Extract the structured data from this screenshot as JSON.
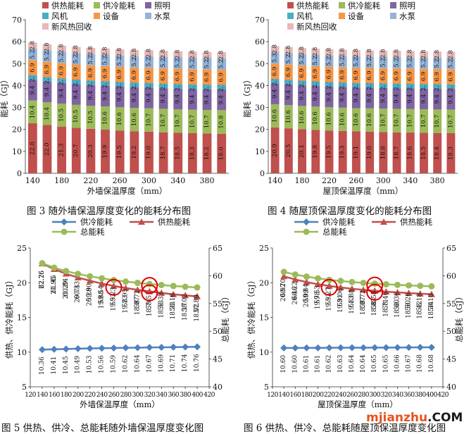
{
  "captions": {
    "fig3": "图 3  随外墙保温厚度变化的能耗分布图",
    "fig4": "图 4  随屋顶保温厚度变化的能耗分布图",
    "fig5": "图 5 供热、供冷、总能耗随外墙保温厚度变化图",
    "fig6": "图 6 供热、供冷、总能耗随屋顶保温厚度变化图"
  },
  "watermark": {
    "text_a": "mjianzhu",
    "text_b": ".COM",
    "color_a": "#e8521b",
    "color_b": "#1a1a1a"
  },
  "colors": {
    "heating": "#c0504d",
    "cooling": "#9bbb59",
    "lighting": "#8064a2",
    "fan": "#4bacc6",
    "equipment": "#f79646",
    "pump": "#95b3d7",
    "fresh": "#e6b9b8",
    "line_cooling": "#4f81bd",
    "line_heating": "#c0504d",
    "line_total": "#9bbb59",
    "highlight": "#e00000"
  },
  "chart_data": [
    {
      "type": "bar",
      "stacked": true,
      "xlabel": "外墙保温厚度（mm）",
      "ylabel": "能耗（GJ）",
      "ylim": [
        0,
        70
      ],
      "yticks": [
        0,
        10,
        20,
        30,
        40,
        50,
        60,
        70
      ],
      "x": [
        140,
        160,
        180,
        200,
        220,
        240,
        260,
        280,
        300,
        320,
        340,
        360,
        380,
        400
      ],
      "xticks": [
        "140",
        "180",
        "220",
        "260",
        "300",
        "340",
        "380"
      ],
      "legend": [
        "供热能耗",
        "供冷能耗",
        "照明",
        "风机",
        "设备",
        "水泵",
        "新风热回收"
      ],
      "legend_placement": "top",
      "series": [
        {
          "name": "供热能耗",
          "values": [
            22.8,
            22.0,
            21.3,
            20.7,
            20.3,
            19.9,
            19.5,
            19.2,
            19.0,
            18.7,
            18.5,
            18.3,
            18.2,
            18.0
          ]
        },
        {
          "name": "供冷能耗",
          "values": [
            10.4,
            10.4,
            10.5,
            10.5,
            10.5,
            10.6,
            10.6,
            10.6,
            10.7,
            10.7,
            10.7,
            10.7,
            10.7,
            10.8
          ]
        },
        {
          "name": "照明",
          "values": [
            9.4,
            9.4,
            9.4,
            9.4,
            9.4,
            9.4,
            9.4,
            9.4,
            9.4,
            9.4,
            9.4,
            9.4,
            9.4,
            9.4
          ]
        },
        {
          "name": "风机",
          "values": [
            2.1,
            2.1,
            2.1,
            2.1,
            2.1,
            2.1,
            2.1,
            2.1,
            2.1,
            2.1,
            2.1,
            2.1,
            2.1,
            2.1
          ]
        },
        {
          "name": "设备",
          "values": [
            6.9,
            6.9,
            6.9,
            6.9,
            6.9,
            6.9,
            6.9,
            6.9,
            6.9,
            6.9,
            6.9,
            6.9,
            6.9,
            6.9
          ]
        },
        {
          "name": "水泵",
          "values": [
            5.2,
            5.2,
            5.2,
            5.2,
            5.2,
            5.2,
            5.2,
            5.2,
            5.2,
            5.2,
            5.2,
            5.2,
            5.2,
            5.2
          ]
        },
        {
          "name": "新风热回收",
          "values": [
            2.8,
            2.8,
            2.8,
            2.8,
            2.8,
            2.8,
            2.8,
            2.8,
            2.8,
            2.8,
            2.8,
            2.8,
            2.8,
            2.8
          ]
        }
      ]
    },
    {
      "type": "bar",
      "stacked": true,
      "xlabel": "屋顶保温厚度（mm）",
      "ylabel": "能耗（GJ）",
      "ylim": [
        0,
        70
      ],
      "yticks": [
        0,
        10,
        20,
        30,
        40,
        50,
        60,
        70
      ],
      "x": [
        140,
        160,
        180,
        200,
        220,
        240,
        260,
        280,
        300,
        320,
        340,
        360,
        380,
        400
      ],
      "xticks": [
        "140",
        "180",
        "220",
        "260",
        "300",
        "340",
        "380"
      ],
      "legend": [
        "供热能耗",
        "供冷能耗",
        "照明",
        "风机",
        "设备",
        "水泵",
        "新风热回收"
      ],
      "legend_placement": "top",
      "series": [
        {
          "name": "供热能耗",
          "values": [
            20.9,
            20.5,
            20.1,
            19.8,
            19.5,
            19.3,
            19.1,
            19.0,
            18.8,
            18.7,
            18.6,
            18.5,
            18.4,
            18.3
          ]
        },
        {
          "name": "供冷能耗",
          "values": [
            10.6,
            10.6,
            10.6,
            10.6,
            10.6,
            10.6,
            10.6,
            10.6,
            10.7,
            10.7,
            10.7,
            10.7,
            10.7,
            10.7
          ]
        },
        {
          "name": "照明",
          "values": [
            9.4,
            9.4,
            9.4,
            9.4,
            9.4,
            9.4,
            9.4,
            9.4,
            9.4,
            9.4,
            9.4,
            9.4,
            9.4,
            9.4
          ]
        },
        {
          "name": "风机",
          "values": [
            2.1,
            2.1,
            2.1,
            2.1,
            2.1,
            2.1,
            2.1,
            2.1,
            2.1,
            2.1,
            2.1,
            2.1,
            2.1,
            2.1
          ]
        },
        {
          "name": "设备",
          "values": [
            6.9,
            6.9,
            6.9,
            6.9,
            6.9,
            6.9,
            6.9,
            6.9,
            6.9,
            6.9,
            6.9,
            6.9,
            6.9,
            6.9
          ]
        },
        {
          "name": "水泵",
          "values": [
            5.3,
            5.2,
            5.2,
            5.2,
            5.2,
            5.2,
            5.2,
            5.2,
            5.2,
            5.2,
            5.2,
            5.2,
            5.2,
            5.2
          ]
        },
        {
          "name": "新风热回收",
          "values": [
            2.8,
            2.8,
            2.8,
            2.8,
            2.8,
            2.8,
            2.8,
            2.8,
            2.8,
            2.8,
            2.8,
            2.8,
            2.8,
            2.8
          ]
        }
      ]
    },
    {
      "type": "line",
      "xlabel": "外墙保温厚度（mm）",
      "ylabel_left": "供热、供冷能耗（GJ）",
      "ylabel_right": "总能耗（GJ）",
      "ylim_left": [
        5,
        25
      ],
      "yticks_left": [
        5,
        10,
        15,
        20,
        25
      ],
      "ylim_right": [
        40,
        65
      ],
      "yticks_right": [
        40,
        45,
        50,
        55,
        60,
        65
      ],
      "xlim": [
        120,
        420
      ],
      "xticks": [
        "120",
        "140",
        "160",
        "180",
        "200",
        "220",
        "240",
        "260",
        "280",
        "300",
        "320",
        "340",
        "360",
        "380",
        "400",
        "420"
      ],
      "x": [
        140,
        160,
        180,
        200,
        220,
        240,
        260,
        280,
        300,
        320,
        340,
        360,
        380,
        400
      ],
      "legend": [
        "供冷能耗",
        "供热能耗",
        "总能耗"
      ],
      "legend_placement": "top",
      "series": [
        {
          "name": "供冷能耗",
          "axis": "left",
          "values": [
            10.36,
            10.41,
            10.45,
            10.49,
            10.53,
            10.56,
            10.59,
            10.62,
            10.64,
            10.67,
            10.69,
            10.71,
            10.74,
            10.76
          ],
          "labels": [
            "10.36",
            "10.41",
            "10.45",
            "10.49",
            "10.53",
            "10.56",
            "10.59",
            "10.62",
            "10.64",
            "10.67",
            "10.69",
            "10.71",
            "10.74",
            "10.76"
          ]
        },
        {
          "name": "供热能耗",
          "axis": "left",
          "values": [
            22.76,
            21.95,
            21.29,
            20.74,
            20.28,
            19.88,
            19.53,
            19.23,
            18.97,
            18.74,
            18.53,
            18.33,
            18.17,
            18.02
          ],
          "labels": [
            "22.76",
            "21.95",
            "21.29",
            "20.74",
            "20.28",
            "19.88",
            "19.53",
            "19.23",
            "18.97",
            "18.74",
            "18.53",
            "18.33",
            "18.17",
            "18.02"
          ]
        },
        {
          "name": "总能耗",
          "axis": "right",
          "values": [
            62.25,
            61.45,
            60.84,
            60.33,
            59.9,
            59.54,
            59.23,
            58.95,
            58.72,
            58.51,
            58.33,
            58.16,
            58.02,
            57.89
          ],
          "labels": [
            "62.25",
            "61.45",
            "60.84",
            "60.33",
            "59.90",
            "59.54",
            "59.23",
            "58.95",
            "58.72",
            "58.51",
            "58.33",
            "58.16",
            "58.02",
            "57.89"
          ]
        }
      ],
      "highlights": [
        {
          "series": "供热能耗",
          "x": 260
        },
        {
          "series": "供热能耗",
          "x": 320
        },
        {
          "series": "总能耗",
          "x": 320
        }
      ]
    },
    {
      "type": "line",
      "xlabel": "屋顶保温厚度（mm）",
      "ylabel_left": "供热、供冷能耗（GJ）",
      "ylabel_right": "总能耗（GJ）",
      "ylim_left": [
        5,
        25
      ],
      "yticks_left": [
        5,
        10,
        15,
        20,
        25
      ],
      "ylim_right": [
        40,
        65
      ],
      "yticks_right": [
        40,
        45,
        50,
        55,
        60,
        65
      ],
      "xlim": [
        120,
        420
      ],
      "xticks": [
        "120",
        "140",
        "160",
        "180",
        "200",
        "220",
        "240",
        "260",
        "280",
        "300",
        "320",
        "340",
        "360",
        "380",
        "400",
        "420"
      ],
      "x": [
        140,
        160,
        180,
        200,
        220,
        240,
        260,
        280,
        300,
        320,
        340,
        360,
        380,
        400
      ],
      "legend": [
        "供冷能耗",
        "供热能耗",
        "总能耗"
      ],
      "legend_placement": "top",
      "series": [
        {
          "name": "供冷能耗",
          "axis": "left",
          "values": [
            10.6,
            10.6,
            10.61,
            10.61,
            10.62,
            10.63,
            10.64,
            10.64,
            10.65,
            10.65,
            10.66,
            10.67,
            10.68,
            10.68
          ],
          "labels": [
            "10.60",
            "10.60",
            "10.61",
            "10.61",
            "10.62",
            "10.63",
            "10.64",
            "10.64",
            "10.65",
            "10.65",
            "10.66",
            "10.67",
            "10.68",
            "10.68"
          ]
        },
        {
          "name": "供热能耗",
          "axis": "left",
          "values": [
            20.92,
            20.46,
            20.09,
            19.78,
            19.53,
            19.31,
            19.13,
            18.97,
            18.83,
            18.71,
            18.6,
            18.5,
            18.42,
            18.34
          ],
          "labels": [
            "20.92",
            "20.46",
            "20.09",
            "19.78",
            "19.53",
            "19.31",
            "19.13",
            "18.97",
            "18.83",
            "18.71",
            "18.60",
            "18.50",
            "18.42",
            "18.34"
          ]
        },
        {
          "name": "总能耗",
          "axis": "right",
          "values": [
            60.7,
            60.22,
            59.84,
            59.53,
            59.27,
            59.06,
            58.88,
            58.72,
            58.58,
            58.46,
            58.36,
            58.26,
            58.18,
            58.1
          ],
          "labels": [
            "60.70",
            "60.22",
            "59.84",
            "59.53",
            "59.27",
            "59.06",
            "58.88",
            "58.72",
            "58.58",
            "58.46",
            "58.36",
            "58.26",
            "58.18",
            "58.10"
          ]
        }
      ],
      "highlights": [
        {
          "series": "供热能耗",
          "x": 220
        },
        {
          "series": "供热能耗",
          "x": 300
        },
        {
          "series": "总能耗",
          "x": 300
        }
      ]
    }
  ]
}
